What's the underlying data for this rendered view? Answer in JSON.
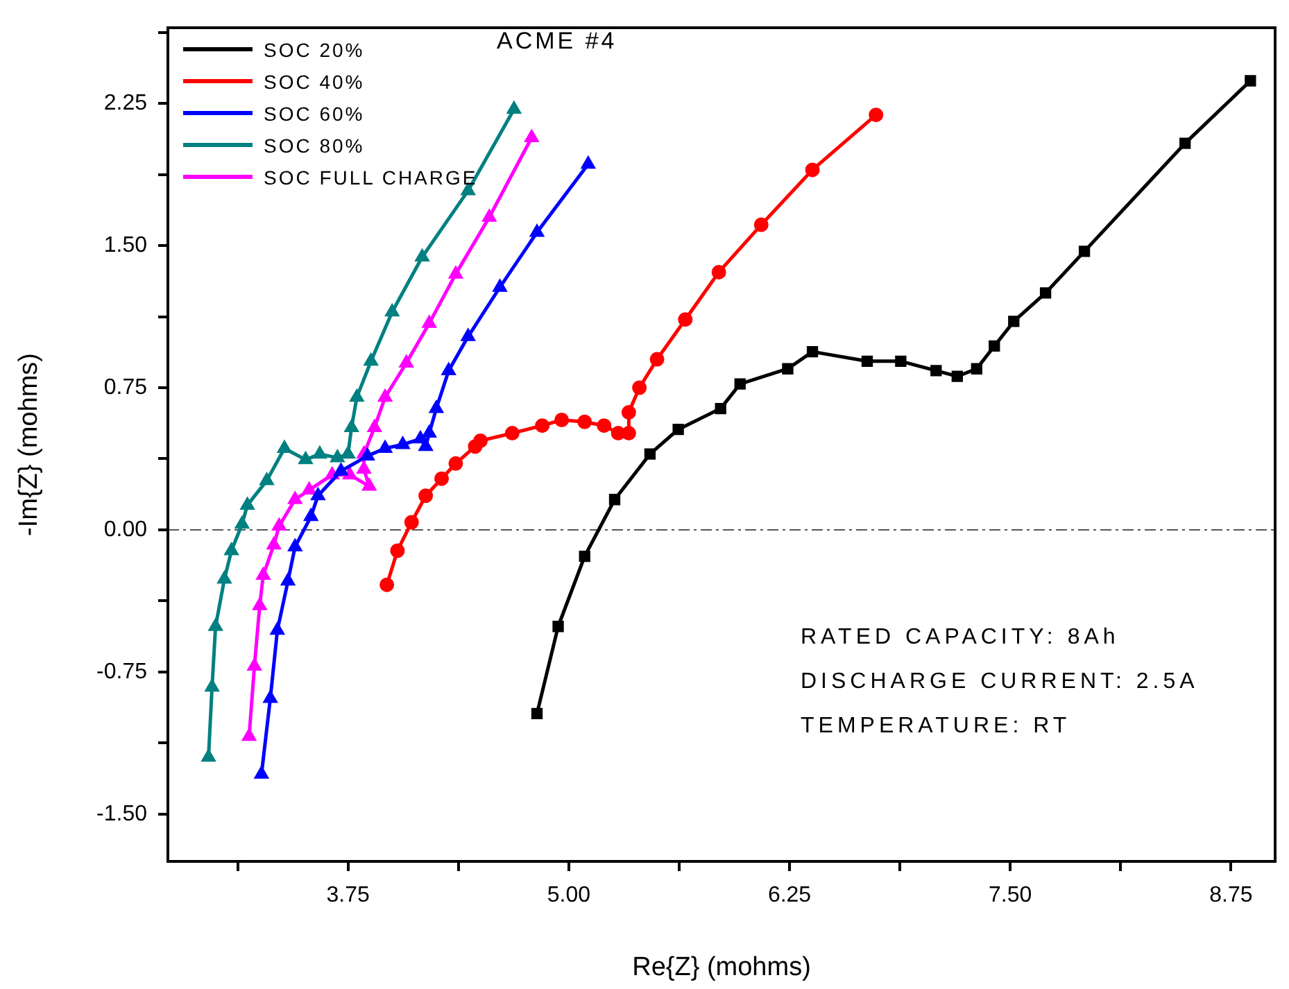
{
  "chart_data": {
    "type": "line",
    "title": "ACME #4",
    "xlabel": "Re{Z} (mohms)",
    "ylabel": "-Im{Z} (mohms)",
    "xlim": [
      2.73,
      9.0
    ],
    "ylim": [
      -1.75,
      2.65
    ],
    "xticks": [
      {
        "value": 3.125,
        "label": null
      },
      3.75,
      {
        "value": 4.375,
        "label": null
      },
      {
        "value": 5,
        "label": "5.00"
      },
      {
        "value": 5.625,
        "label": null
      },
      6.25,
      {
        "value": 6.875,
        "label": null
      },
      {
        "value": 7.5,
        "label": "7.50"
      },
      {
        "value": 8.125,
        "label": null
      },
      8.75
    ],
    "yticks": [
      {
        "value": -1.5,
        "label": "-1.50"
      },
      {
        "value": -1.125,
        "label": null
      },
      -0.75,
      {
        "value": -0.375,
        "label": null
      },
      {
        "value": 0,
        "label": "0.00"
      },
      {
        "value": 0.375,
        "label": null
      },
      0.75,
      {
        "value": 1.125,
        "label": null
      },
      {
        "value": 1.5,
        "label": "1.50"
      },
      {
        "value": 1.875,
        "label": null
      },
      2.25,
      {
        "value": 2.625,
        "label": null
      }
    ],
    "grid": false,
    "legend": "top left",
    "line_style": "solid",
    "ref_lines": [
      {
        "axis": "y",
        "value": 0,
        "color": "#555555",
        "line_style": "dashed"
      }
    ],
    "annotations": [
      "RATED CAPACITY: 8Ah",
      "DISCHARGE CURRENT: 2.5A",
      "TEMPERATURE: RT"
    ],
    "series": [
      {
        "name": "SOC 20%",
        "color": "#000000",
        "marker": "square",
        "x": [
          4.82,
          4.94,
          5.09,
          5.26,
          5.46,
          5.62,
          5.86,
          5.97,
          6.24,
          6.38,
          6.69,
          6.88,
          7.08,
          7.2,
          7.31,
          7.41,
          7.52,
          7.7,
          7.92,
          8.49,
          8.86
        ],
        "values": [
          -0.97,
          -0.51,
          -0.14,
          0.16,
          0.4,
          0.53,
          0.64,
          0.77,
          0.85,
          0.94,
          0.89,
          0.89,
          0.84,
          0.81,
          0.85,
          0.97,
          1.1,
          1.25,
          1.47,
          2.04,
          2.37
        ]
      },
      {
        "name": "SOC 40%",
        "color": "#ff0000",
        "marker": "circle",
        "x": [
          3.97,
          4.03,
          4.11,
          4.19,
          4.28,
          4.36,
          4.47,
          4.5,
          4.68,
          4.85,
          4.96,
          5.09,
          5.2,
          5.28,
          5.34,
          5.34,
          5.4,
          5.5,
          5.66,
          5.85,
          6.09,
          6.38,
          6.74
        ],
        "values": [
          -0.29,
          -0.11,
          0.04,
          0.18,
          0.27,
          0.35,
          0.44,
          0.47,
          0.51,
          0.55,
          0.58,
          0.57,
          0.55,
          0.51,
          0.51,
          0.62,
          0.75,
          0.9,
          1.11,
          1.36,
          1.61,
          1.9,
          2.19
        ]
      },
      {
        "name": "SOC 60%",
        "color": "#0000ff",
        "marker": "triangle",
        "x": [
          3.26,
          3.31,
          3.35,
          3.41,
          3.45,
          3.54,
          3.58,
          3.71,
          3.86,
          3.96,
          4.06,
          4.16,
          4.19,
          4.21,
          4.25,
          4.32,
          4.43,
          4.61,
          4.82,
          5.11
        ],
        "values": [
          -1.29,
          -0.89,
          -0.53,
          -0.27,
          -0.09,
          0.07,
          0.18,
          0.31,
          0.39,
          0.43,
          0.45,
          0.48,
          0.44,
          0.51,
          0.64,
          0.84,
          1.02,
          1.28,
          1.57,
          1.93
        ]
      },
      {
        "name": "SOC 80%",
        "color": "#008080",
        "marker": "triangle",
        "x": [
          2.96,
          2.98,
          3.0,
          3.05,
          3.09,
          3.15,
          3.18,
          3.29,
          3.39,
          3.51,
          3.59,
          3.69,
          3.75,
          3.77,
          3.8,
          3.88,
          4.0,
          4.17,
          4.43,
          4.69
        ],
        "values": [
          -1.2,
          -0.83,
          -0.51,
          -0.26,
          -0.11,
          0.03,
          0.13,
          0.26,
          0.43,
          0.37,
          0.4,
          0.38,
          0.4,
          0.54,
          0.7,
          0.89,
          1.15,
          1.44,
          1.79,
          2.22
        ]
      },
      {
        "name": "SOC FULL CHARGE",
        "color": "#ff00ff",
        "marker": "triangle",
        "x": [
          3.19,
          3.22,
          3.25,
          3.27,
          3.33,
          3.36,
          3.45,
          3.53,
          3.66,
          3.76,
          3.87,
          3.84,
          3.84,
          3.9,
          3.96,
          4.08,
          4.21,
          4.36,
          4.55,
          4.79
        ],
        "values": [
          -1.09,
          -0.72,
          -0.4,
          -0.24,
          -0.08,
          0.02,
          0.16,
          0.21,
          0.29,
          0.29,
          0.23,
          0.32,
          0.4,
          0.54,
          0.7,
          0.88,
          1.09,
          1.35,
          1.65,
          2.07
        ]
      }
    ]
  }
}
